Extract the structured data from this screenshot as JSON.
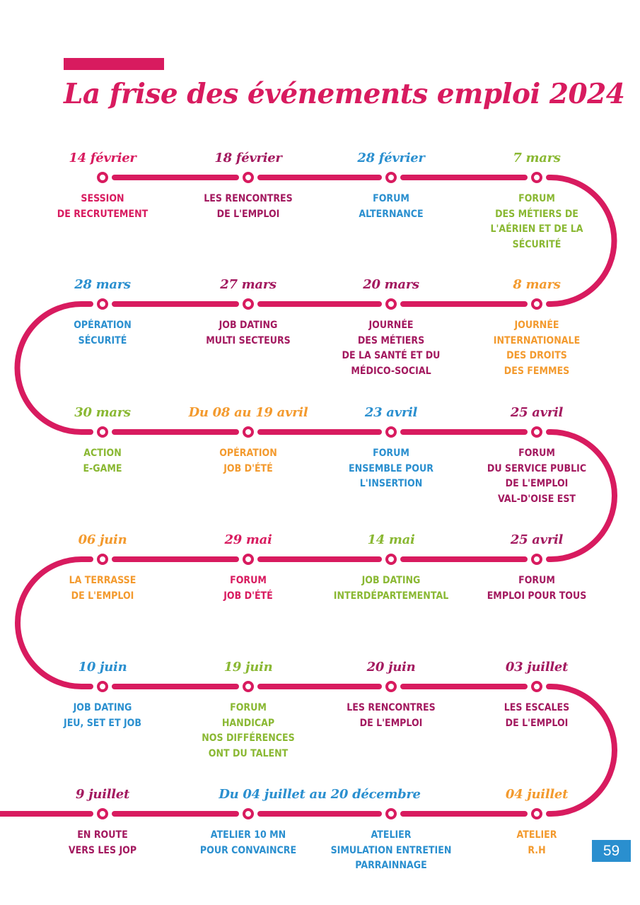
{
  "title": "La frise des événements emploi 2024",
  "page_number": "59",
  "colors": {
    "track": "#d81b5f",
    "pink": "#d81b5f",
    "blue": "#2a8fcf",
    "green": "#8ab833",
    "orange": "#f39a2e",
    "purple": "#a3195f"
  },
  "events": [
    {
      "date": "14 février",
      "label": "SESSION\nDE RECRUTEMENT",
      "color": "pink"
    },
    {
      "date": "18 février",
      "label": "LES RENCONTRES\nDE L'EMPLOI",
      "color": "purple"
    },
    {
      "date": "28 février",
      "label": "FORUM\nALTERNANCE",
      "color": "blue"
    },
    {
      "date": "7 mars",
      "label": "FORUM\nDES MÉTIERS DE\nL'AÉRIEN ET DE LA\nSÉCURITÉ",
      "color": "green"
    },
    {
      "date": "28 mars",
      "label": "OPÉRATION\nSÉCURITÉ",
      "color": "blue"
    },
    {
      "date": "27 mars",
      "label": "JOB DATING\nMULTI SECTEURS",
      "color": "purple"
    },
    {
      "date": "20 mars",
      "label": "JOURNÉE\nDES MÉTIERS\nDE LA SANTÉ ET DU\nMÉDICO-SOCIAL",
      "color": "purple"
    },
    {
      "date": "8 mars",
      "label": "JOURNÉE\nINTERNATIONALE\nDES DROITS\nDES FEMMES",
      "color": "orange"
    },
    {
      "date": "30 mars",
      "label": "ACTION\nE-GAME",
      "color": "green"
    },
    {
      "date": "Du 08 au 19 avril",
      "label": "OPÉRATION\nJOB D'ÉTÉ",
      "color": "orange"
    },
    {
      "date": "23 avril",
      "label": "FORUM\nENSEMBLE POUR\nL'INSERTION",
      "color": "blue"
    },
    {
      "date": "25 avril",
      "label": "FORUM\nDU SERVICE PUBLIC\nDE L'EMPLOI\nVAL-D'OISE EST",
      "color": "purple"
    },
    {
      "date": "06 juin",
      "label": "LA TERRASSE\nDE L'EMPLOI",
      "color": "orange"
    },
    {
      "date": "29 mai",
      "label": "FORUM\nJOB D'ÉTÉ",
      "color": "pink"
    },
    {
      "date": "14 mai",
      "label": "JOB DATING\nINTERDÉPARTEMENTAL",
      "color": "green"
    },
    {
      "date": "25 avril",
      "label": "FORUM\nEMPLOI POUR TOUS",
      "color": "purple"
    },
    {
      "date": "10 juin",
      "label": "JOB DATING\nJEU, SET ET JOB",
      "color": "blue"
    },
    {
      "date": "19 juin",
      "label": "FORUM\nHANDICAP\nNOS DIFFÉRENCES\nONT DU TALENT",
      "color": "green"
    },
    {
      "date": "20 juin",
      "label": "LES RENCONTRES\nDE L'EMPLOI",
      "color": "purple"
    },
    {
      "date": "03 juillet",
      "label": "LES ESCALES\nDE L'EMPLOI",
      "color": "purple"
    },
    {
      "date": "9 juillet",
      "label": "EN ROUTE\nVERS LES JOP",
      "color": "purple"
    },
    {
      "date": "",
      "label": "ATELIER 10 MN\nPOUR CONVAINCRE",
      "color": "blue"
    },
    {
      "date": "",
      "label": "ATELIER\nSIMULATION ENTRETIEN\nPARRAINNAGE",
      "color": "blue"
    },
    {
      "date": "04 juillet",
      "label": "ATELIER\nR.H",
      "color": "orange"
    }
  ],
  "range_label": {
    "date": "Du 04 juillet au 20 décembre",
    "color": "blue"
  }
}
